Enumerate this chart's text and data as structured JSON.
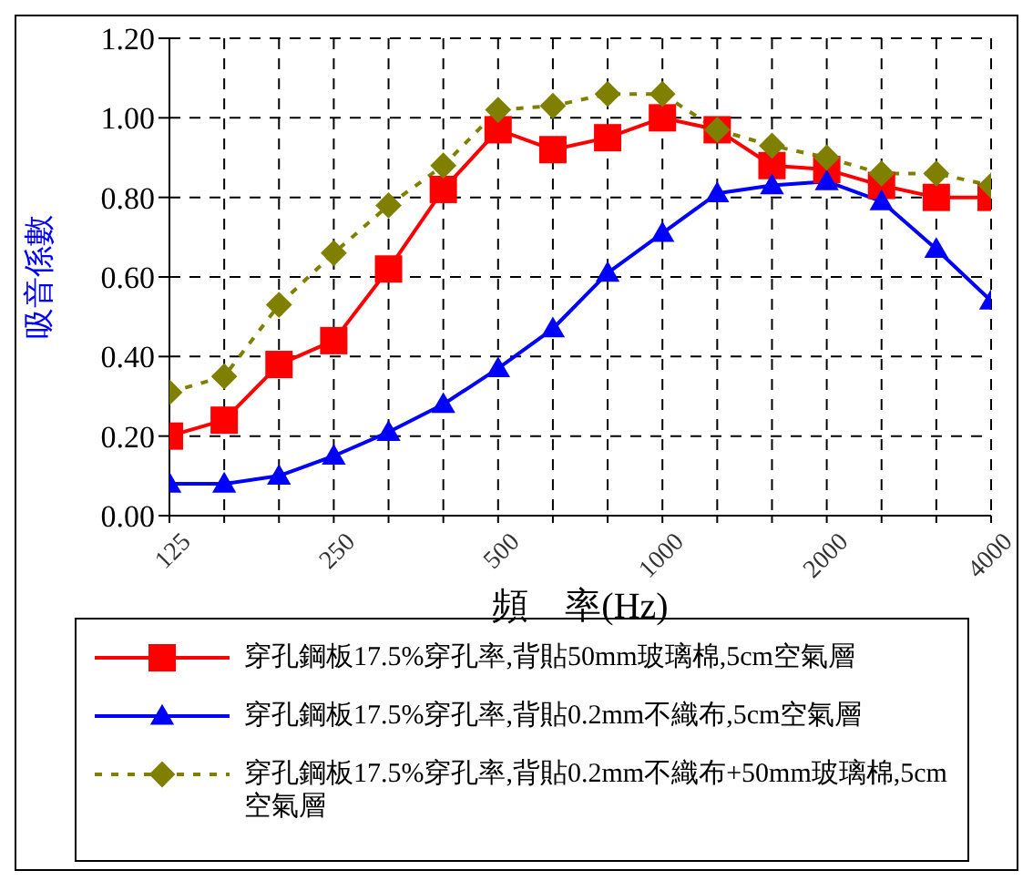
{
  "chart_data": {
    "type": "line",
    "xlabel": "頻　率(Hz)",
    "ylabel": "吸音係數",
    "categories": [
      "125",
      null,
      null,
      "250",
      null,
      null,
      "500",
      null,
      null,
      "1000",
      null,
      null,
      "2000",
      null,
      null,
      "4000"
    ],
    "series": [
      {
        "name": "穿孔鋼板17.5%穿孔率,背貼50mm玻璃棉,5cm空氣層",
        "color": "#ff0000",
        "marker": "square",
        "line_style": "solid",
        "values": [
          0.2,
          0.24,
          0.38,
          0.44,
          0.62,
          0.82,
          0.97,
          0.92,
          0.95,
          1.0,
          0.97,
          0.88,
          0.87,
          0.83,
          0.8,
          0.8
        ]
      },
      {
        "name": "穿孔鋼板17.5%穿孔率,背貼0.2mm不織布,5cm空氣層",
        "color": "#0000ff",
        "marker": "triangle",
        "line_style": "solid",
        "values": [
          0.08,
          0.08,
          0.1,
          0.15,
          0.21,
          0.28,
          0.37,
          0.47,
          0.61,
          0.71,
          0.81,
          0.83,
          0.84,
          0.79,
          0.67,
          0.54
        ]
      },
      {
        "name": "穿孔鋼板17.5%穿孔率,背貼0.2mm不織布+50mm玻璃棉,5cm空氣層",
        "color": "#808000",
        "marker": "diamond",
        "line_style": "dashed",
        "values": [
          0.31,
          0.35,
          0.53,
          0.66,
          0.78,
          0.88,
          1.02,
          1.03,
          1.06,
          1.06,
          0.97,
          0.93,
          0.9,
          0.86,
          0.86,
          0.83
        ]
      }
    ],
    "ylim": [
      0,
      1.2
    ],
    "yticks": [
      {
        "value": 0,
        "label": "0.00"
      },
      {
        "value": 0.2,
        "label": "0.20"
      },
      {
        "value": 0.4,
        "label": "0.40"
      },
      {
        "value": 0.6,
        "label": "0.60"
      },
      {
        "value": 0.8,
        "label": "0.80"
      },
      {
        "value": 1,
        "label": "1.00"
      },
      {
        "value": 1.2,
        "label": "1.20"
      }
    ],
    "grid": true,
    "legend": "bottom"
  }
}
